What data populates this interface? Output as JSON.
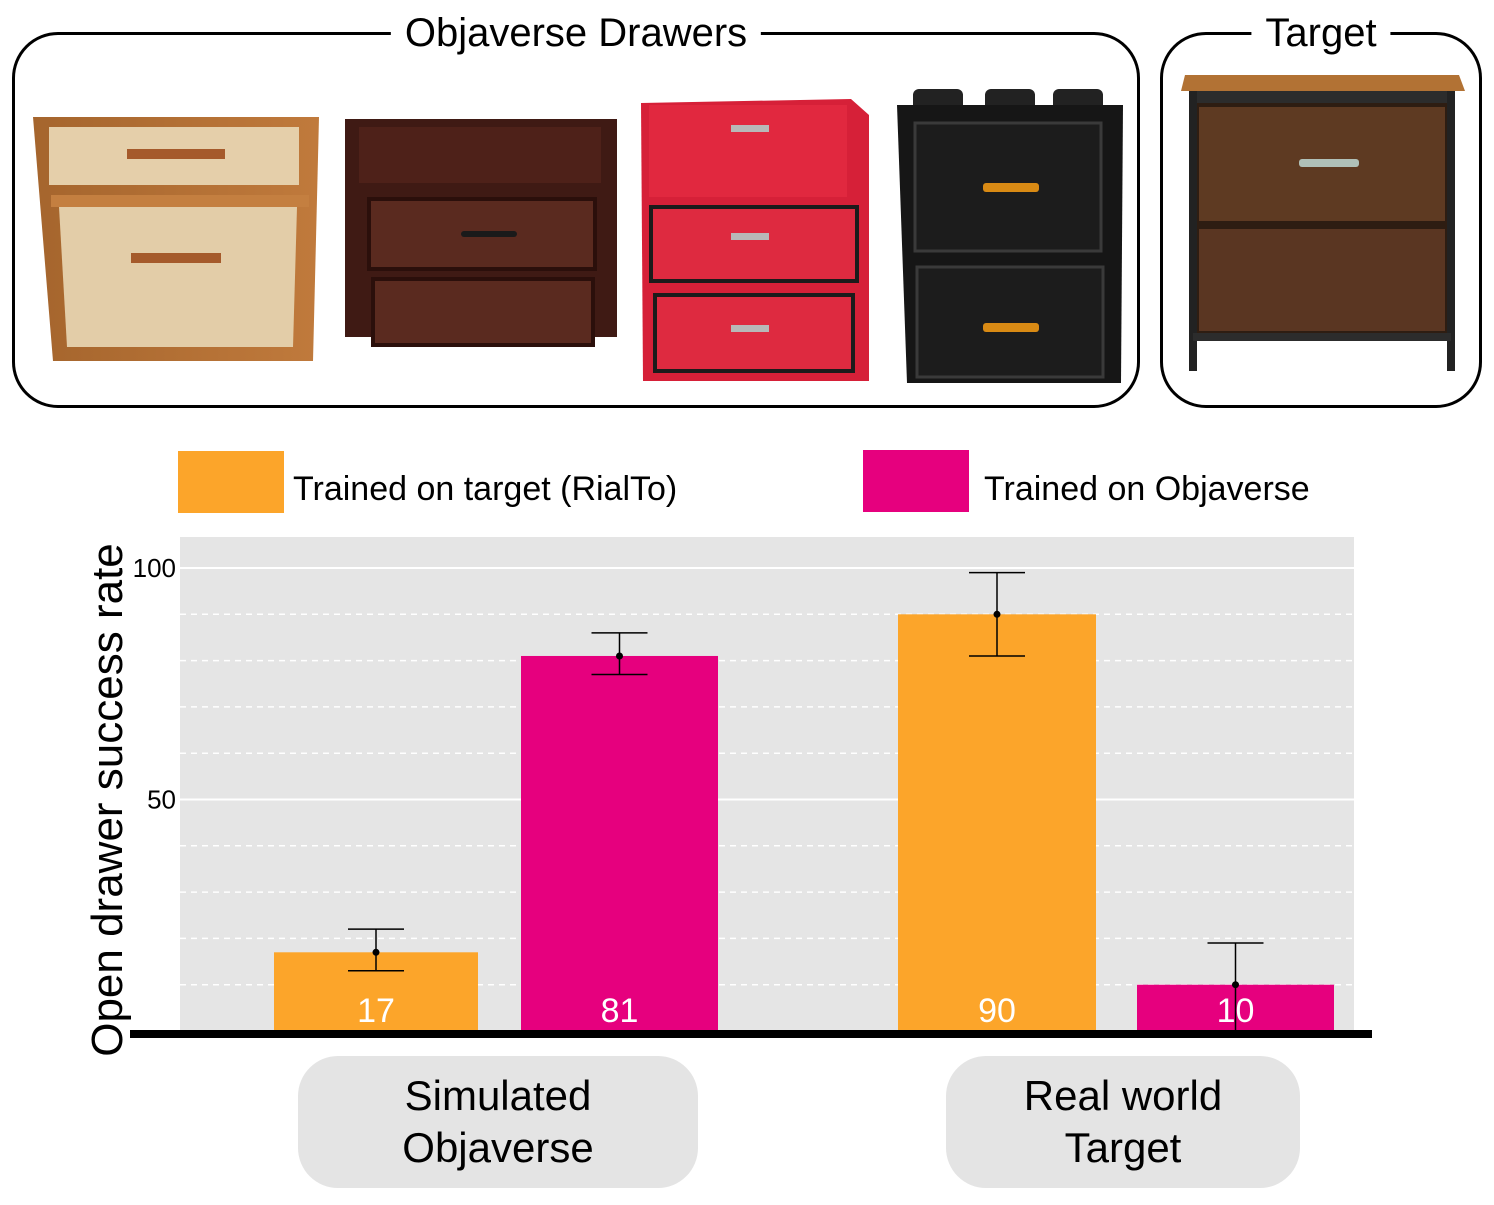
{
  "panels": {
    "objaverse_title": "Objaverse Drawers",
    "target_title": "Target"
  },
  "legend": [
    {
      "label": "Trained on target (RialTo)",
      "color": "#fca52a"
    },
    {
      "label": "Trained on Objaverse",
      "color": "#e6007e"
    }
  ],
  "chart_data": {
    "type": "bar",
    "ylabel": "Open drawer success rate",
    "ylim": [
      0,
      105
    ],
    "yticks": [
      50,
      100
    ],
    "groups": [
      {
        "label_lines": [
          "Simulated",
          "Objaverse"
        ]
      },
      {
        "label_lines": [
          "Real world",
          "Target"
        ]
      }
    ],
    "series": [
      {
        "name": "Trained on target (RialTo)",
        "color": "#fca52a",
        "values": [
          17,
          90
        ],
        "err_low": [
          13,
          81
        ],
        "err_high": [
          22,
          99
        ]
      },
      {
        "name": "Trained on Objaverse",
        "color": "#e6007e",
        "values": [
          81,
          10
        ],
        "err_low": [
          77,
          0
        ],
        "err_high": [
          86,
          19
        ]
      }
    ],
    "data_labels": [
      "17",
      "81",
      "90",
      "10"
    ],
    "grid": true,
    "legend_position": "top"
  },
  "colors": {
    "panel_bg": "#e5e5e5",
    "grid": "#ffffff",
    "axis": "#000000"
  }
}
